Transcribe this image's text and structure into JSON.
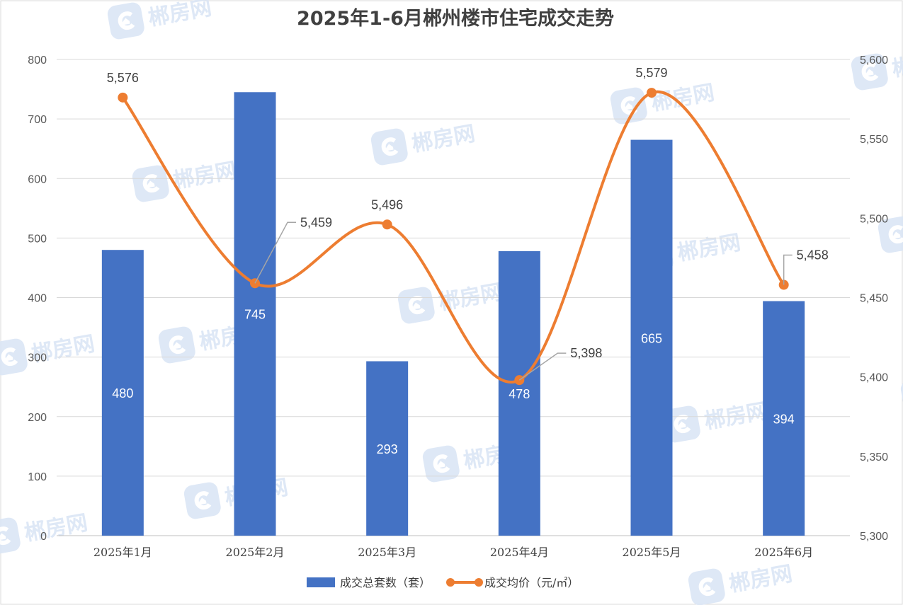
{
  "watermark": {
    "text": "郴房网"
  },
  "chart_data": {
    "type": "bar",
    "title": "2025年1-6月郴州楼市住宅成交走势",
    "categories": [
      "2025年1月",
      "2025年2月",
      "2025年3月",
      "2025年4月",
      "2025年5月",
      "2025年6月"
    ],
    "series": [
      {
        "name": "成交总套数（套）",
        "type": "bar",
        "axis": "left",
        "color": "#4472c4",
        "values": [
          480,
          745,
          293,
          478,
          665,
          394
        ],
        "labels": [
          "480",
          "745",
          "293",
          "478",
          "665",
          "394"
        ]
      },
      {
        "name": "成交均价（元/㎡）",
        "type": "line",
        "smooth": true,
        "axis": "right",
        "color": "#ed7d31",
        "values": [
          5576,
          5459,
          5496,
          5398,
          5579,
          5458
        ],
        "labels": [
          "5,576",
          "5,459",
          "5,496",
          "5,398",
          "5,579",
          "5,458"
        ]
      }
    ],
    "y_left": {
      "min": 0,
      "max": 800,
      "ticks": [
        "0",
        "100",
        "200",
        "300",
        "400",
        "500",
        "600",
        "700",
        "800"
      ]
    },
    "y_right": {
      "min": 5300,
      "max": 5600,
      "ticks": [
        "5,300",
        "5,350",
        "5,400",
        "5,450",
        "5,500",
        "5,550",
        "5,600"
      ]
    },
    "grid": true,
    "legend_position": "bottom"
  }
}
